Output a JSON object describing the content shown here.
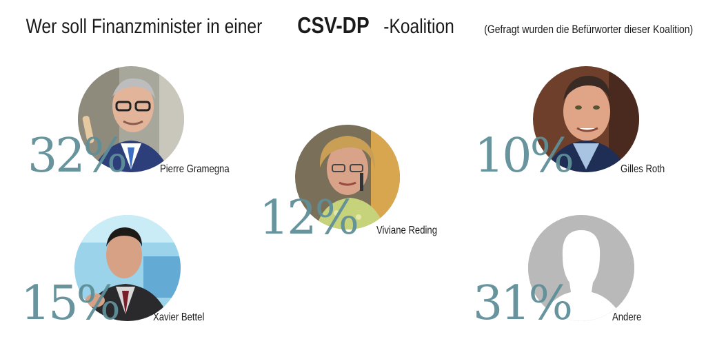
{
  "title": {
    "pre": "Wer soll Finanzminister in einer",
    "bold": "CSV-DP",
    "post": "-Koalition",
    "sub": "(Gefragt wurden die Befürworter dieser Koalition)"
  },
  "colors": {
    "percent": "#5f8f98",
    "text": "#1a1a1a",
    "placeholder": "#b9b9b9"
  },
  "chart_data": {
    "type": "other",
    "title": "Wer soll Finanzminister in einer CSV-DP-Koalition",
    "subtitle": "(Gefragt wurden die Befürworter dieser Koalition)",
    "items": [
      {
        "name": "Pierre Gramegna",
        "value": 32,
        "label": "32%"
      },
      {
        "name": "Viviane Reding",
        "value": 12,
        "label": "12%"
      },
      {
        "name": "Gilles Roth",
        "value": 10,
        "label": "10%"
      },
      {
        "name": "Xavier Bettel",
        "value": 15,
        "label": "15%"
      },
      {
        "name": "Andere",
        "value": 31,
        "label": "31%"
      }
    ]
  },
  "people": [
    {
      "name": "Pierre Gramegna",
      "pct": "32%",
      "icon": "portrait-photo"
    },
    {
      "name": "Viviane Reding",
      "pct": "12%",
      "icon": "portrait-photo"
    },
    {
      "name": "Gilles Roth",
      "pct": "10%",
      "icon": "portrait-photo"
    },
    {
      "name": "Xavier Bettel",
      "pct": "15%",
      "icon": "portrait-photo"
    },
    {
      "name": "Andere",
      "pct": "31%",
      "icon": "silhouette-placeholder"
    }
  ]
}
